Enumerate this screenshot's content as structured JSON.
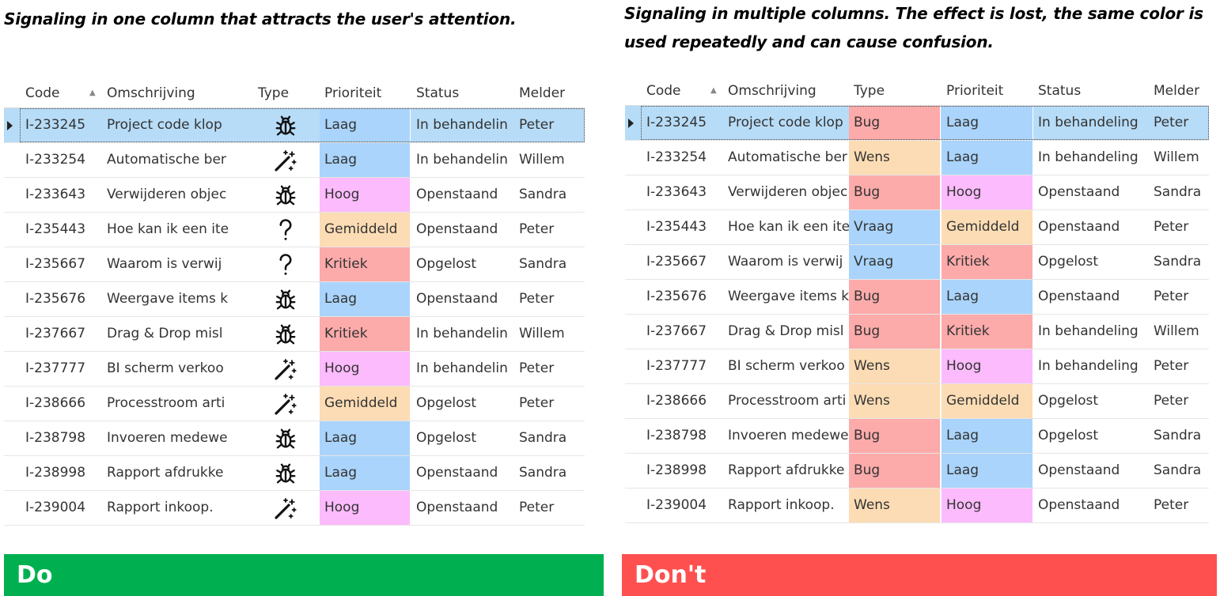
{
  "captions": {
    "left": "Signaling in one column that attracts the user's attention.",
    "right": "Signaling in multiple columns. The effect is lost, the same color is used repeatedly and can cause confusion."
  },
  "banners": {
    "do": {
      "label": "Do",
      "color": "#00b050"
    },
    "dont": {
      "label": "Don't",
      "color": "#ff5050"
    }
  },
  "colors": {
    "priority": {
      "Laag": "#aad4fb",
      "Hoog": "#fcbbfc",
      "Gemiddeld": "#fcdcb4",
      "Kritiek": "#fcaaaa"
    },
    "type": {
      "Bug": "#fcaaaa",
      "Wens": "#fcdcb4",
      "Vraag": "#aad4fb"
    },
    "selected_row": "#b7dcf7"
  },
  "left_grid": {
    "headers": {
      "code": "Code",
      "omschrijving": "Omschrijving",
      "type": "Type",
      "prioriteit": "Prioriteit",
      "status": "Status",
      "melder": "Melder"
    },
    "rows": [
      {
        "code": "I-233245",
        "omschrijving": "Project code klop",
        "type_icon": "bug-icon",
        "prioriteit": "Laag",
        "status": "In behandelin",
        "melder": "Peter",
        "selected": true
      },
      {
        "code": "I-233254",
        "omschrijving": "Automatische ber",
        "type_icon": "magic-wand-icon",
        "prioriteit": "Laag",
        "status": "In behandelin",
        "melder": "Willem"
      },
      {
        "code": "I-233643",
        "omschrijving": "Verwijderen objec",
        "type_icon": "bug-icon",
        "prioriteit": "Hoog",
        "status": "Openstaand",
        "melder": "Sandra"
      },
      {
        "code": "I-235443",
        "omschrijving": "Hoe kan ik een ite",
        "type_icon": "question-icon",
        "prioriteit": "Gemiddeld",
        "status": "Openstaand",
        "melder": "Peter"
      },
      {
        "code": "I-235667",
        "omschrijving": "Waarom is verwij",
        "type_icon": "question-icon",
        "prioriteit": "Kritiek",
        "status": "Opgelost",
        "melder": "Sandra"
      },
      {
        "code": "I-235676",
        "omschrijving": "Weergave items k",
        "type_icon": "bug-icon",
        "prioriteit": "Laag",
        "status": "Openstaand",
        "melder": "Peter"
      },
      {
        "code": "I-237667",
        "omschrijving": "Drag & Drop misl",
        "type_icon": "bug-icon",
        "prioriteit": "Kritiek",
        "status": "In behandelin",
        "melder": "Willem"
      },
      {
        "code": "I-237777",
        "omschrijving": "BI scherm verkoo",
        "type_icon": "magic-wand-icon",
        "prioriteit": "Hoog",
        "status": "In behandelin",
        "melder": "Peter"
      },
      {
        "code": "I-238666",
        "omschrijving": "Processtroom arti",
        "type_icon": "magic-wand-icon",
        "prioriteit": "Gemiddeld",
        "status": "Opgelost",
        "melder": "Peter"
      },
      {
        "code": "I-238798",
        "omschrijving": "Invoeren medewe",
        "type_icon": "bug-icon",
        "prioriteit": "Laag",
        "status": "Opgelost",
        "melder": "Sandra"
      },
      {
        "code": "I-238998",
        "omschrijving": "Rapport afdrukke",
        "type_icon": "bug-icon",
        "prioriteit": "Laag",
        "status": "Openstaand",
        "melder": "Sandra"
      },
      {
        "code": "I-239004",
        "omschrijving": "Rapport inkoop.",
        "type_icon": "magic-wand-icon",
        "prioriteit": "Hoog",
        "status": "Openstaand",
        "melder": "Peter"
      }
    ]
  },
  "right_grid": {
    "headers": {
      "code": "Code",
      "omschrijving": "Omschrijving",
      "type": "Type",
      "prioriteit": "Prioriteit",
      "status": "Status",
      "melder": "Melder"
    },
    "rows": [
      {
        "code": "I-233245",
        "omschrijving": "Project code klop",
        "type": "Bug",
        "prioriteit": "Laag",
        "status": "In behandeling",
        "melder": "Peter",
        "selected": true
      },
      {
        "code": "I-233254",
        "omschrijving": "Automatische ber",
        "type": "Wens",
        "prioriteit": "Laag",
        "status": "In behandeling",
        "melder": "Willem"
      },
      {
        "code": "I-233643",
        "omschrijving": "Verwijderen objec",
        "type": "Bug",
        "prioriteit": "Hoog",
        "status": "Openstaand",
        "melder": "Sandra"
      },
      {
        "code": "I-235443",
        "omschrijving": "Hoe kan ik een ite",
        "type": "Vraag",
        "prioriteit": "Gemiddeld",
        "status": "Openstaand",
        "melder": "Peter"
      },
      {
        "code": "I-235667",
        "omschrijving": "Waarom is verwij",
        "type": "Vraag",
        "prioriteit": "Kritiek",
        "status": "Opgelost",
        "melder": "Sandra"
      },
      {
        "code": "I-235676",
        "omschrijving": "Weergave items k",
        "type": "Bug",
        "prioriteit": "Laag",
        "status": "Openstaand",
        "melder": "Peter"
      },
      {
        "code": "I-237667",
        "omschrijving": "Drag & Drop misl",
        "type": "Bug",
        "prioriteit": "Kritiek",
        "status": "In behandeling",
        "melder": "Willem"
      },
      {
        "code": "I-237777",
        "omschrijving": "BI scherm verkoo",
        "type": "Wens",
        "prioriteit": "Hoog",
        "status": "In behandeling",
        "melder": "Peter"
      },
      {
        "code": "I-238666",
        "omschrijving": "Processtroom arti",
        "type": "Wens",
        "prioriteit": "Gemiddeld",
        "status": "Opgelost",
        "melder": "Peter"
      },
      {
        "code": "I-238798",
        "omschrijving": "Invoeren medewe",
        "type": "Bug",
        "prioriteit": "Laag",
        "status": "Opgelost",
        "melder": "Sandra"
      },
      {
        "code": "I-238998",
        "omschrijving": "Rapport afdrukke",
        "type": "Bug",
        "prioriteit": "Laag",
        "status": "Openstaand",
        "melder": "Sandra"
      },
      {
        "code": "I-239004",
        "omschrijving": "Rapport inkoop.",
        "type": "Wens",
        "prioriteit": "Hoog",
        "status": "Openstaand",
        "melder": "Peter"
      }
    ]
  }
}
